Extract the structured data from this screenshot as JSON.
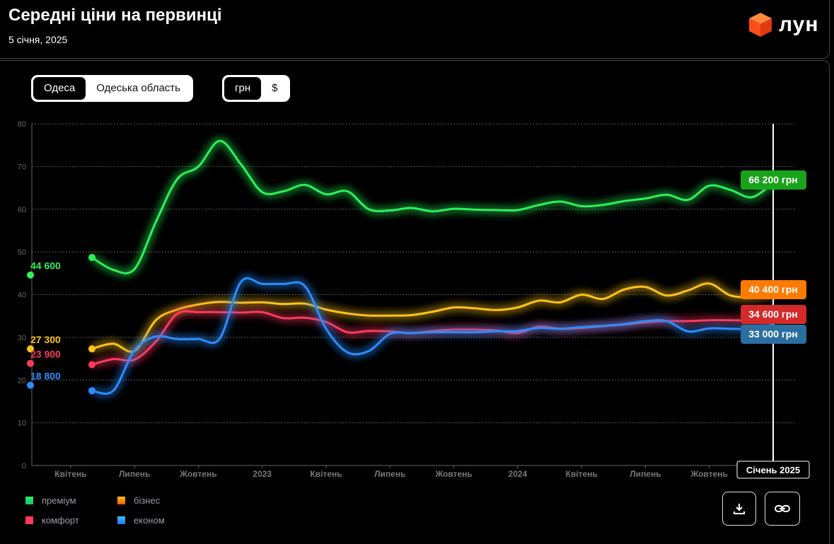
{
  "header": {
    "title": "Середні ціни на первинці",
    "date": "5 січня, 2025",
    "logo_text": "лун"
  },
  "region_toggle": {
    "options": [
      "Одеса",
      "Одеська область"
    ],
    "selected": "Одеса"
  },
  "currency_toggle": {
    "options": [
      "грн",
      "$"
    ],
    "selected": "грн"
  },
  "buttons": {
    "download": "download-icon",
    "link": "link-icon"
  },
  "chart_data": {
    "type": "line",
    "ylim": [
      0,
      80
    ],
    "yticks": [
      0,
      10,
      20,
      30,
      40,
      50,
      60,
      70,
      80
    ],
    "grid": true,
    "legend_position": "bottom-left",
    "x": [
      "2022-05",
      "2022-06",
      "2022-07",
      "2022-08",
      "2022-09",
      "2022-10",
      "2022-11",
      "2022-12",
      "2023-01",
      "2023-02",
      "2023-03",
      "2023-04",
      "2023-05",
      "2023-06",
      "2023-07",
      "2023-08",
      "2023-09",
      "2023-10",
      "2023-11",
      "2023-12",
      "2024-01",
      "2024-02",
      "2024-03",
      "2024-04",
      "2024-05",
      "2024-06",
      "2024-07",
      "2024-08",
      "2024-09",
      "2024-10",
      "2024-11",
      "2024-12",
      "2025-01"
    ],
    "xticks": [
      {
        "month": "2022-04",
        "label": "Квітень"
      },
      {
        "month": "2022-07",
        "label": "Липень"
      },
      {
        "month": "2022-10",
        "label": "Жовтень"
      },
      {
        "month": "2023-01",
        "label": "2023"
      },
      {
        "month": "2023-04",
        "label": "Квітень"
      },
      {
        "month": "2023-07",
        "label": "Липень"
      },
      {
        "month": "2023-10",
        "label": "Жовтень"
      },
      {
        "month": "2024-01",
        "label": "2024"
      },
      {
        "month": "2024-04",
        "label": "Квітень"
      },
      {
        "month": "2024-07",
        "label": "Липень"
      },
      {
        "month": "2024-10",
        "label": "Жовтень"
      }
    ],
    "cursor_label": "Січень 2025",
    "series": [
      {
        "name": "преміум",
        "color": "#2ef05a",
        "label_color": "#1aa31a",
        "end_label": "66 200 грн",
        "start_label": "44 600",
        "start_value": 44.6,
        "values": [
          48.7,
          45.8,
          46,
          57,
          67,
          70,
          76,
          70.5,
          64,
          64.2,
          65.7,
          63.5,
          64.2,
          60,
          59.7,
          60.3,
          59.5,
          60.1,
          59.9,
          59.8,
          59.8,
          61,
          61.8,
          60.7,
          61,
          61.9,
          62.5,
          63.4,
          62.2,
          65.5,
          64.5,
          62.8,
          66.2
        ]
      },
      {
        "name": "бізнес",
        "color": "#ffc21a",
        "label_color": "#ff7a00",
        "end_label": "40 400 грн",
        "start_label": "27 300",
        "start_value": 27.3,
        "values": [
          27.3,
          28.5,
          26.8,
          34,
          36.5,
          37.7,
          38.3,
          38.1,
          38.2,
          37.8,
          37.9,
          36.5,
          35.6,
          35.1,
          35.1,
          35.2,
          36,
          37,
          36.8,
          36.4,
          37,
          38.6,
          38.2,
          40,
          39,
          41.2,
          41.8,
          39.8,
          41,
          42.6,
          39.8,
          39.5,
          40.4
        ]
      },
      {
        "name": "комфорт",
        "color": "#ff3a5c",
        "label_color": "#d32a2a",
        "end_label": "34 600 грн",
        "start_label": "23 900",
        "start_value": 23.9,
        "values": [
          23.6,
          24.9,
          24.8,
          29,
          35.5,
          35.9,
          35.9,
          35.8,
          35.9,
          34.5,
          34.6,
          33.6,
          31.2,
          31.5,
          31.4,
          31,
          31.5,
          31.8,
          31.8,
          31.6,
          31,
          32.5,
          32,
          32.2,
          32.6,
          33,
          33.5,
          33.8,
          33.8,
          34,
          34,
          34,
          34.6
        ]
      },
      {
        "name": "економ",
        "color": "#2f8cff",
        "label_color": "#2a6fa0",
        "end_label": "33 000 грн",
        "start_label": "18 800",
        "start_value": 18.8,
        "values": [
          17.5,
          17.5,
          27,
          30.2,
          29.6,
          29.6,
          29.7,
          43,
          42.5,
          42.5,
          42,
          32,
          26.5,
          26.8,
          30.8,
          31,
          31.2,
          31.2,
          31.2,
          31.4,
          31.5,
          32.2,
          32,
          32.4,
          32.7,
          33.1,
          33.8,
          33.8,
          31.4,
          32.1,
          32,
          32,
          33
        ]
      }
    ]
  }
}
